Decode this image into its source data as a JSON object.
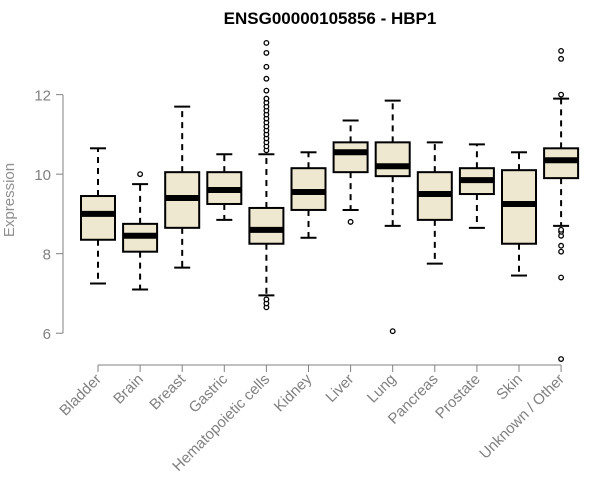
{
  "chart_data": {
    "type": "boxplot",
    "title": "ENSG00000105856 - HBP1",
    "xlabel": "",
    "ylabel": "Expression",
    "ylim": [
      5.2,
      13.5
    ],
    "yticks": [
      6,
      8,
      10,
      12
    ],
    "box_fill": "#efe8d0",
    "box_stroke": "#000000",
    "axis_color": "#808080",
    "categories": [
      "Bladder",
      "Brain",
      "Breast",
      "Gastric",
      "Hematopoietic cells",
      "Kidney",
      "Liver",
      "Lung",
      "Pancreas",
      "Prostate",
      "Skin",
      "Unknown / Other"
    ],
    "series": [
      {
        "name": "Bladder",
        "whisker_low": 7.25,
        "q1": 8.35,
        "median": 9.0,
        "q3": 9.45,
        "whisker_high": 10.65,
        "outliers": []
      },
      {
        "name": "Brain",
        "whisker_low": 7.1,
        "q1": 8.05,
        "median": 8.45,
        "q3": 8.75,
        "whisker_high": 9.75,
        "outliers": [
          10.0
        ]
      },
      {
        "name": "Breast",
        "whisker_low": 7.65,
        "q1": 8.65,
        "median": 9.4,
        "q3": 10.05,
        "whisker_high": 11.7,
        "outliers": []
      },
      {
        "name": "Gastric",
        "whisker_low": 8.85,
        "q1": 9.25,
        "median": 9.6,
        "q3": 10.05,
        "whisker_high": 10.5,
        "outliers": []
      },
      {
        "name": "Hematopoietic cells",
        "whisker_low": 6.95,
        "q1": 8.25,
        "median": 8.6,
        "q3": 9.15,
        "whisker_high": 10.5,
        "outliers": [
          6.65,
          6.75,
          6.85,
          10.6,
          10.7,
          10.8,
          10.9,
          11.0,
          11.1,
          11.2,
          11.3,
          11.4,
          11.5,
          11.6,
          11.7,
          11.8,
          11.9,
          12.1,
          12.4,
          12.7,
          13.05,
          13.3
        ]
      },
      {
        "name": "Kidney",
        "whisker_low": 8.4,
        "q1": 9.1,
        "median": 9.55,
        "q3": 10.15,
        "whisker_high": 10.55,
        "outliers": []
      },
      {
        "name": "Liver",
        "whisker_low": 9.1,
        "q1": 10.05,
        "median": 10.55,
        "q3": 10.8,
        "whisker_high": 11.35,
        "outliers": [
          8.8
        ]
      },
      {
        "name": "Lung",
        "whisker_low": 8.7,
        "q1": 9.95,
        "median": 10.2,
        "q3": 10.8,
        "whisker_high": 11.85,
        "outliers": [
          6.05
        ]
      },
      {
        "name": "Pancreas",
        "whisker_low": 7.75,
        "q1": 8.85,
        "median": 9.5,
        "q3": 10.05,
        "whisker_high": 10.8,
        "outliers": []
      },
      {
        "name": "Prostate",
        "whisker_low": 8.65,
        "q1": 9.5,
        "median": 9.85,
        "q3": 10.15,
        "whisker_high": 10.75,
        "outliers": []
      },
      {
        "name": "Skin",
        "whisker_low": 7.45,
        "q1": 8.25,
        "median": 9.25,
        "q3": 10.1,
        "whisker_high": 10.55,
        "outliers": []
      },
      {
        "name": "Unknown / Other",
        "whisker_low": 8.7,
        "q1": 9.9,
        "median": 10.35,
        "q3": 10.65,
        "whisker_high": 11.9,
        "outliers": [
          5.35,
          7.4,
          8.05,
          8.2,
          8.45,
          8.55,
          8.6,
          12.0,
          12.9,
          13.1
        ]
      }
    ]
  }
}
